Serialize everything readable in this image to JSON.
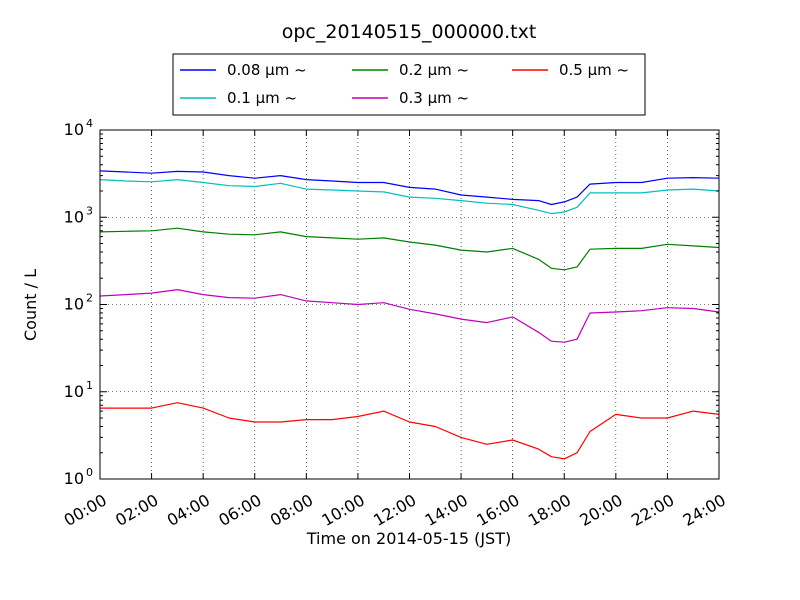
{
  "chart_data": {
    "type": "line",
    "title": "opc_20140515_000000.txt",
    "xlabel": "Time on 2014-05-15 (JST)",
    "ylabel": "Count / L",
    "x_ticks": [
      "00:00",
      "02:00",
      "04:00",
      "06:00",
      "08:00",
      "10:00",
      "12:00",
      "14:00",
      "16:00",
      "18:00",
      "20:00",
      "22:00",
      "24:00"
    ],
    "y_ticks": [
      {
        "value": 1,
        "base": "10",
        "exp": "0"
      },
      {
        "value": 10,
        "base": "10",
        "exp": "1"
      },
      {
        "value": 100,
        "base": "10",
        "exp": "2"
      },
      {
        "value": 1000,
        "base": "10",
        "exp": "3"
      },
      {
        "value": 10000,
        "base": "10",
        "exp": "4"
      }
    ],
    "xlim": [
      0,
      24
    ],
    "ylim": [
      1,
      10000
    ],
    "y_scale": "log",
    "grid": true,
    "legend_position": "top-center",
    "series": [
      {
        "name": "0.08 μm ~",
        "color": "#0000ff",
        "x": [
          0,
          1,
          2,
          3,
          4,
          5,
          6,
          7,
          8,
          9,
          10,
          11,
          12,
          13,
          14,
          15,
          16,
          17,
          17.5,
          18,
          18.5,
          19,
          20,
          21,
          22,
          23,
          24
        ],
        "y": [
          3400,
          3300,
          3200,
          3350,
          3300,
          3000,
          2800,
          3000,
          2700,
          2600,
          2500,
          2500,
          2200,
          2100,
          1800,
          1700,
          1600,
          1550,
          1400,
          1500,
          1700,
          2400,
          2500,
          2500,
          2800,
          2850,
          2800
        ]
      },
      {
        "name": "0.1 μm ~",
        "color": "#00bfbf",
        "x": [
          0,
          1,
          2,
          3,
          4,
          5,
          6,
          7,
          8,
          9,
          10,
          11,
          12,
          13,
          14,
          15,
          16,
          17,
          17.5,
          18,
          18.5,
          19,
          20,
          21,
          22,
          23,
          24
        ],
        "y": [
          2700,
          2600,
          2550,
          2700,
          2500,
          2300,
          2250,
          2450,
          2100,
          2050,
          2000,
          1950,
          1700,
          1650,
          1550,
          1450,
          1400,
          1200,
          1100,
          1150,
          1300,
          1900,
          1900,
          1900,
          2050,
          2100,
          2000
        ]
      },
      {
        "name": "0.2 μm ~",
        "color": "#008000",
        "x": [
          0,
          1,
          2,
          3,
          4,
          5,
          6,
          7,
          8,
          9,
          10,
          11,
          12,
          13,
          14,
          15,
          16,
          17,
          17.5,
          18,
          18.5,
          19,
          20,
          21,
          22,
          23,
          24
        ],
        "y": [
          680,
          690,
          700,
          750,
          680,
          640,
          630,
          680,
          600,
          580,
          560,
          580,
          520,
          480,
          420,
          400,
          440,
          330,
          260,
          250,
          270,
          430,
          440,
          440,
          490,
          470,
          450
        ]
      },
      {
        "name": "0.3 μm ~",
        "color": "#bf00bf",
        "x": [
          0,
          1,
          2,
          3,
          4,
          5,
          6,
          7,
          8,
          9,
          10,
          11,
          12,
          13,
          14,
          15,
          16,
          17,
          17.5,
          18,
          18.5,
          19,
          20,
          21,
          22,
          23,
          24
        ],
        "y": [
          125,
          130,
          135,
          148,
          130,
          120,
          118,
          130,
          110,
          105,
          100,
          105,
          88,
          78,
          68,
          62,
          72,
          48,
          38,
          37,
          40,
          80,
          82,
          85,
          92,
          90,
          82
        ]
      },
      {
        "name": "0.5 μm ~",
        "color": "#ff0000",
        "x": [
          0,
          1,
          2,
          3,
          4,
          5,
          6,
          7,
          8,
          9,
          10,
          11,
          12,
          13,
          14,
          15,
          16,
          17,
          17.5,
          18,
          18.5,
          19,
          20,
          21,
          22,
          23,
          24
        ],
        "y": [
          6.5,
          6.5,
          6.5,
          7.5,
          6.5,
          5.0,
          4.5,
          4.5,
          4.8,
          4.8,
          5.2,
          6.0,
          4.5,
          4.0,
          3.0,
          2.5,
          2.8,
          2.2,
          1.8,
          1.7,
          2.0,
          3.5,
          5.5,
          5.0,
          5.0,
          6.0,
          5.5
        ]
      }
    ]
  }
}
